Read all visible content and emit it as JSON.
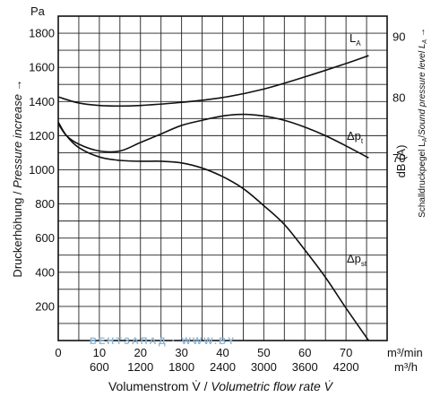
{
  "chart_data": {
    "type": "line",
    "x": {
      "label_de": "Volumenstrom V̇ / ",
      "label_en": "Volumetric flow rate V̇",
      "range": [
        0,
        80
      ],
      "unit_primary": "m³/min",
      "unit_secondary": "m³/h",
      "ticks": [
        0,
        10,
        20,
        30,
        40,
        50,
        60,
        70
      ],
      "tick_labels": [
        "0",
        "10",
        "20",
        "30",
        "40",
        "50",
        "60",
        "70"
      ],
      "secondary_ticks": [
        10,
        20,
        30,
        40,
        50,
        60,
        70
      ],
      "secondary_tick_labels": [
        "600",
        "1200",
        "1800",
        "2400",
        "3000",
        "3600",
        "4200"
      ]
    },
    "y_left": {
      "label_de": "Druckerhöhung / ",
      "label_en": "Pressure increase",
      "arrow": "→",
      "unit": "Pa",
      "range": [
        0,
        1900
      ],
      "ticks": [
        200,
        400,
        600,
        800,
        1000,
        1200,
        1400,
        1600,
        1800
      ],
      "tick_labels": [
        "200",
        "400",
        "600",
        "800",
        "1000",
        "1200",
        "1400",
        "1600",
        "1800"
      ]
    },
    "y_right": {
      "unit": "dB (A)",
      "label_de": "Schalldruckpegel L",
      "label_en": "Sound pressure level L",
      "label_sub": "A",
      "arrow": "→",
      "range": [
        40,
        93.4
      ],
      "ticks": [
        70,
        80,
        90
      ],
      "tick_labels": [
        "70",
        "80",
        "90"
      ]
    },
    "grid": true,
    "series": [
      {
        "name": "L",
        "name_sub": "A",
        "axis": "right",
        "x": [
          0,
          5,
          10,
          15,
          20,
          30,
          40,
          50,
          60,
          70,
          75.5
        ],
        "y": [
          80.1,
          79.1,
          78.7,
          78.6,
          78.7,
          79.2,
          80.0,
          81.4,
          83.4,
          85.6,
          86.9
        ]
      },
      {
        "name": "Δp",
        "name_sub": "t",
        "axis": "left",
        "x": [
          0,
          2,
          5,
          10,
          15,
          20,
          25,
          30,
          35,
          40,
          45,
          50,
          55,
          60,
          65,
          70,
          75.5
        ],
        "y": [
          1270,
          1200,
          1150,
          1110,
          1110,
          1160,
          1210,
          1260,
          1290,
          1315,
          1325,
          1315,
          1290,
          1250,
          1200,
          1140,
          1070
        ]
      },
      {
        "name": "Δp",
        "name_sub": "st",
        "axis": "left",
        "x": [
          0,
          2,
          5,
          10,
          15,
          20,
          25,
          30,
          35,
          40,
          45,
          50,
          55,
          60,
          65,
          70,
          75.5
        ],
        "y": [
          1280,
          1200,
          1130,
          1075,
          1055,
          1050,
          1050,
          1040,
          1010,
          960,
          890,
          790,
          680,
          530,
          370,
          190,
          0
        ]
      }
    ]
  },
  "watermark": "ВЕНТЗАПАД · WWW.BY"
}
